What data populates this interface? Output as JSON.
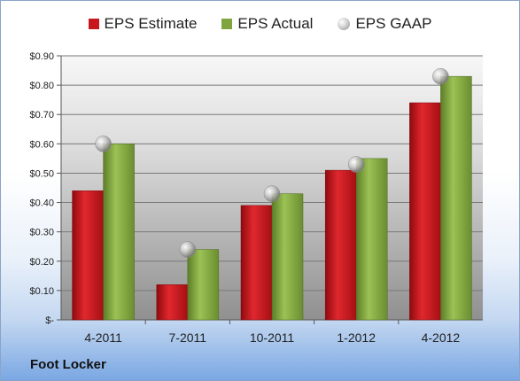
{
  "company": "Foot Locker",
  "legend": {
    "estimate": "EPS Estimate",
    "actual": "EPS Actual",
    "gaap": "EPS GAAP"
  },
  "colors": {
    "estimate": "#c8161d",
    "actual": "#80a53e",
    "gaap": "#b0b0b0"
  },
  "chart_data": {
    "type": "bar",
    "categories": [
      "4-2011",
      "7-2011",
      "10-2011",
      "1-2012",
      "4-2012"
    ],
    "series": [
      {
        "name": "EPS Estimate",
        "values": [
          0.44,
          0.12,
          0.39,
          0.51,
          0.74
        ]
      },
      {
        "name": "EPS Actual",
        "values": [
          0.6,
          0.24,
          0.43,
          0.55,
          0.83
        ]
      },
      {
        "name": "EPS GAAP",
        "values": [
          0.6,
          0.24,
          0.43,
          0.53,
          0.83
        ],
        "marker": "sphere"
      }
    ],
    "ylim": [
      0,
      0.9
    ],
    "yticks": [
      0,
      0.1,
      0.2,
      0.3,
      0.4,
      0.5,
      0.6,
      0.7,
      0.8,
      0.9
    ],
    "ytick_labels": [
      "$-",
      "$0.10",
      "$0.20",
      "$0.30",
      "$0.40",
      "$0.50",
      "$0.60",
      "$0.70",
      "$0.80",
      "$0.90"
    ],
    "grid": true,
    "legend_position": "top"
  }
}
